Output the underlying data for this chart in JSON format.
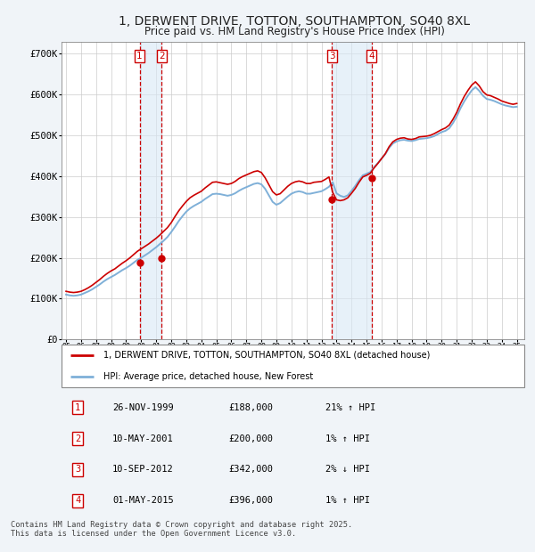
{
  "title": "1, DERWENT DRIVE, TOTTON, SOUTHAMPTON, SO40 8XL",
  "subtitle": "Price paid vs. HM Land Registry's House Price Index (HPI)",
  "title_fontsize": 10,
  "subtitle_fontsize": 8.5,
  "background_color": "#f0f4f8",
  "plot_bg_color": "#ffffff",
  "grid_color": "#cccccc",
  "ylim": [
    0,
    730000
  ],
  "yticks": [
    0,
    100000,
    200000,
    300000,
    400000,
    500000,
    600000,
    700000
  ],
  "ytick_labels": [
    "£0",
    "£100K",
    "£200K",
    "£300K",
    "£400K",
    "£500K",
    "£600K",
    "£700K"
  ],
  "xmin": 1994.7,
  "xmax": 2025.5,
  "transaction_color": "#cc0000",
  "hpi_color": "#7fb0d8",
  "dot_color": "#cc0000",
  "vline_color": "#cc0000",
  "shade_color": "#d8e8f5",
  "legend_label_red": "1, DERWENT DRIVE, TOTTON, SOUTHAMPTON, SO40 8XL (detached house)",
  "legend_label_blue": "HPI: Average price, detached house, New Forest",
  "transactions": [
    {
      "num": 1,
      "date_x": 1999.9,
      "price": 188000,
      "label": "1",
      "vline_x": 1999.9
    },
    {
      "num": 2,
      "date_x": 2001.36,
      "price": 200000,
      "label": "2",
      "vline_x": 2001.36
    },
    {
      "num": 3,
      "date_x": 2012.7,
      "price": 342000,
      "label": "3",
      "vline_x": 2012.7
    },
    {
      "num": 4,
      "date_x": 2015.33,
      "price": 396000,
      "label": "4",
      "vline_x": 2015.33
    }
  ],
  "table_rows": [
    {
      "num": "1",
      "date": "26-NOV-1999",
      "price": "£188,000",
      "change": "21% ↑ HPI"
    },
    {
      "num": "2",
      "date": "10-MAY-2001",
      "price": "£200,000",
      "change": "1% ↑ HPI"
    },
    {
      "num": "3",
      "date": "10-SEP-2012",
      "price": "£342,000",
      "change": "2% ↓ HPI"
    },
    {
      "num": "4",
      "date": "01-MAY-2015",
      "price": "£396,000",
      "change": "1% ↑ HPI"
    }
  ],
  "footer": "Contains HM Land Registry data © Crown copyright and database right 2025.\nThis data is licensed under the Open Government Licence v3.0.",
  "hpi_data_x": [
    1995.0,
    1995.25,
    1995.5,
    1995.75,
    1996.0,
    1996.25,
    1996.5,
    1996.75,
    1997.0,
    1997.25,
    1997.5,
    1997.75,
    1998.0,
    1998.25,
    1998.5,
    1998.75,
    1999.0,
    1999.25,
    1999.5,
    1999.75,
    2000.0,
    2000.25,
    2000.5,
    2000.75,
    2001.0,
    2001.25,
    2001.5,
    2001.75,
    2002.0,
    2002.25,
    2002.5,
    2002.75,
    2003.0,
    2003.25,
    2003.5,
    2003.75,
    2004.0,
    2004.25,
    2004.5,
    2004.75,
    2005.0,
    2005.25,
    2005.5,
    2005.75,
    2006.0,
    2006.25,
    2006.5,
    2006.75,
    2007.0,
    2007.25,
    2007.5,
    2007.75,
    2008.0,
    2008.25,
    2008.5,
    2008.75,
    2009.0,
    2009.25,
    2009.5,
    2009.75,
    2010.0,
    2010.25,
    2010.5,
    2010.75,
    2011.0,
    2011.25,
    2011.5,
    2011.75,
    2012.0,
    2012.25,
    2012.5,
    2012.75,
    2013.0,
    2013.25,
    2013.5,
    2013.75,
    2014.0,
    2014.25,
    2014.5,
    2014.75,
    2015.0,
    2015.25,
    2015.5,
    2015.75,
    2016.0,
    2016.25,
    2016.5,
    2016.75,
    2017.0,
    2017.25,
    2017.5,
    2017.75,
    2018.0,
    2018.25,
    2018.5,
    2018.75,
    2019.0,
    2019.25,
    2019.5,
    2019.75,
    2020.0,
    2020.25,
    2020.5,
    2020.75,
    2021.0,
    2021.25,
    2021.5,
    2021.75,
    2022.0,
    2022.25,
    2022.5,
    2022.75,
    2023.0,
    2023.25,
    2023.5,
    2023.75,
    2024.0,
    2024.25,
    2024.5,
    2024.75,
    2025.0
  ],
  "hpi_data_y": [
    110000,
    108000,
    107000,
    108000,
    110000,
    114000,
    118000,
    123000,
    129000,
    135000,
    142000,
    148000,
    153000,
    158000,
    164000,
    170000,
    175000,
    181000,
    188000,
    195000,
    200000,
    206000,
    212000,
    219000,
    226000,
    234000,
    242000,
    251000,
    263000,
    276000,
    290000,
    302000,
    313000,
    321000,
    327000,
    332000,
    337000,
    344000,
    350000,
    356000,
    357000,
    356000,
    354000,
    352000,
    354000,
    358000,
    364000,
    369000,
    373000,
    377000,
    381000,
    383000,
    380000,
    369000,
    353000,
    337000,
    330000,
    334000,
    342000,
    350000,
    357000,
    361000,
    363000,
    361000,
    357000,
    357000,
    359000,
    361000,
    363000,
    368000,
    374000,
    385000,
    358000,
    352000,
    349000,
    353000,
    364000,
    376000,
    390000,
    402000,
    406000,
    410000,
    422000,
    432000,
    443000,
    454000,
    469000,
    480000,
    485000,
    488000,
    489000,
    487000,
    486000,
    488000,
    491000,
    492000,
    493000,
    495000,
    498000,
    503000,
    508000,
    511000,
    517000,
    530000,
    546000,
    566000,
    583000,
    597000,
    610000,
    618000,
    609000,
    597000,
    589000,
    587000,
    584000,
    580000,
    576000,
    573000,
    571000,
    569000,
    570000
  ],
  "price_data_x": [
    1995.0,
    1995.25,
    1995.5,
    1995.75,
    1996.0,
    1996.25,
    1996.5,
    1996.75,
    1997.0,
    1997.25,
    1997.5,
    1997.75,
    1998.0,
    1998.25,
    1998.5,
    1998.75,
    1999.0,
    1999.25,
    1999.5,
    1999.75,
    2000.0,
    2000.25,
    2000.5,
    2000.75,
    2001.0,
    2001.25,
    2001.5,
    2001.75,
    2002.0,
    2002.25,
    2002.5,
    2002.75,
    2003.0,
    2003.25,
    2003.5,
    2003.75,
    2004.0,
    2004.25,
    2004.5,
    2004.75,
    2005.0,
    2005.25,
    2005.5,
    2005.75,
    2006.0,
    2006.25,
    2006.5,
    2006.75,
    2007.0,
    2007.25,
    2007.5,
    2007.75,
    2008.0,
    2008.25,
    2008.5,
    2008.75,
    2009.0,
    2009.25,
    2009.5,
    2009.75,
    2010.0,
    2010.25,
    2010.5,
    2010.75,
    2011.0,
    2011.25,
    2011.5,
    2011.75,
    2012.0,
    2012.25,
    2012.5,
    2012.75,
    2013.0,
    2013.25,
    2013.5,
    2013.75,
    2014.0,
    2014.25,
    2014.5,
    2014.75,
    2015.0,
    2015.25,
    2015.5,
    2015.75,
    2016.0,
    2016.25,
    2016.5,
    2016.75,
    2017.0,
    2017.25,
    2017.5,
    2017.75,
    2018.0,
    2018.25,
    2018.5,
    2018.75,
    2019.0,
    2019.25,
    2019.5,
    2019.75,
    2020.0,
    2020.25,
    2020.5,
    2020.75,
    2021.0,
    2021.25,
    2021.5,
    2021.75,
    2022.0,
    2022.25,
    2022.5,
    2022.75,
    2023.0,
    2023.25,
    2023.5,
    2023.75,
    2024.0,
    2024.25,
    2024.5,
    2024.75,
    2025.0
  ],
  "price_data_y": [
    118000,
    116000,
    115000,
    116000,
    118000,
    122000,
    127000,
    133000,
    140000,
    147000,
    155000,
    162000,
    168000,
    173000,
    180000,
    187000,
    193000,
    200000,
    208000,
    216000,
    222000,
    228000,
    234000,
    241000,
    248000,
    256000,
    265000,
    274000,
    286000,
    301000,
    315000,
    327000,
    338000,
    347000,
    353000,
    358000,
    363000,
    371000,
    378000,
    385000,
    386000,
    384000,
    382000,
    380000,
    382000,
    387000,
    394000,
    399000,
    403000,
    407000,
    411000,
    413000,
    409000,
    396000,
    379000,
    362000,
    354000,
    357000,
    366000,
    375000,
    382000,
    386000,
    388000,
    386000,
    382000,
    382000,
    385000,
    386000,
    387000,
    392000,
    398000,
    360000,
    342000,
    340000,
    342000,
    347000,
    358000,
    370000,
    385000,
    398000,
    402000,
    407000,
    420000,
    431000,
    443000,
    455000,
    472000,
    484000,
    490000,
    493000,
    494000,
    491000,
    490000,
    492000,
    496000,
    497000,
    498000,
    500000,
    504000,
    509000,
    514000,
    518000,
    525000,
    539000,
    556000,
    577000,
    595000,
    610000,
    623000,
    631000,
    621000,
    607000,
    599000,
    597000,
    593000,
    589000,
    584000,
    581000,
    578000,
    576000,
    578000
  ]
}
